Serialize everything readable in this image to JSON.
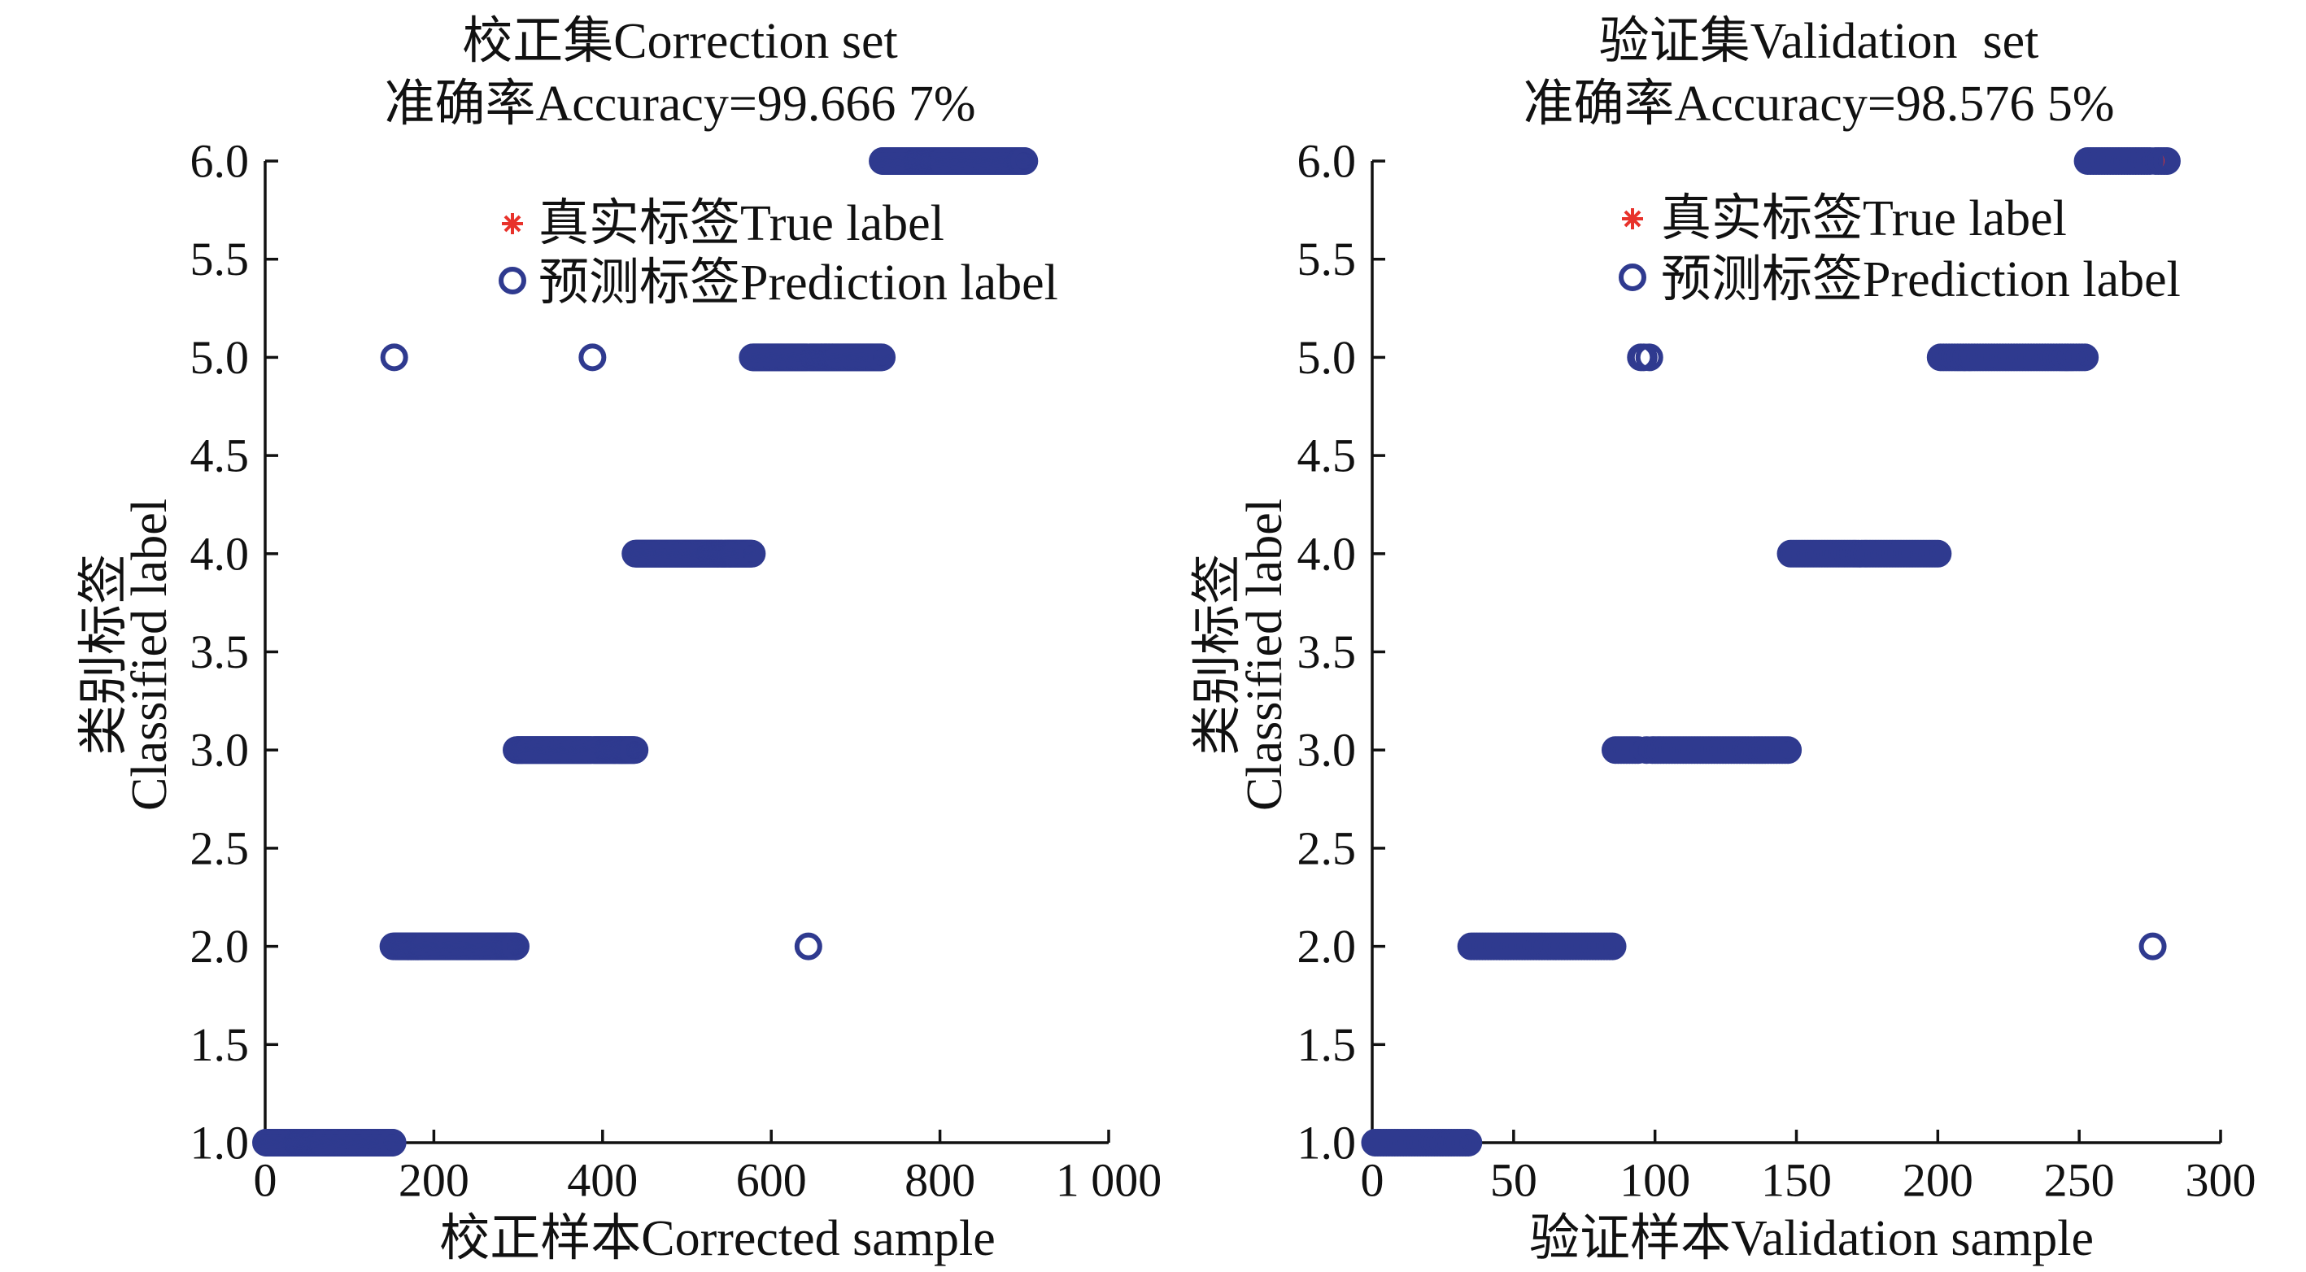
{
  "chart_data": [
    {
      "type": "scatter",
      "title": "校正集Correction set",
      "subtitle": "准确率Accuracy=99.666 7%",
      "xlabel": "校正样本Corrected sample",
      "ylabel": [
        "类别标签",
        "Classified label"
      ],
      "xlim": [
        0,
        1000
      ],
      "ylim": [
        1,
        6
      ],
      "x_ticks": [
        0,
        200,
        400,
        600,
        800,
        1000
      ],
      "x_tick_labels": [
        "0",
        "200",
        "400",
        "600",
        "800",
        "1 000"
      ],
      "y_ticks": [
        1,
        1.5,
        2,
        2.5,
        3,
        3.5,
        4,
        4.5,
        5,
        5.5,
        6
      ],
      "y_tick_labels": [
        "1.0",
        "1.5",
        "2.0",
        "2.5",
        "3.0",
        "3.5",
        "4.0",
        "4.5",
        "5.0",
        "5.5",
        "6.0"
      ],
      "grid": false,
      "legend": {
        "placement": "top"
      },
      "series": [
        {
          "name": "真实标签True label",
          "marker": "asterisk",
          "color": "#e8322b",
          "segments": [
            {
              "y": 1,
              "x_from": 1,
              "x_to": 151
            },
            {
              "y": 2,
              "x_from": 152,
              "x_to": 297
            },
            {
              "y": 3,
              "x_from": 298,
              "x_to": 438
            },
            {
              "y": 4,
              "x_from": 439,
              "x_to": 577
            },
            {
              "y": 5,
              "x_from": 578,
              "x_to": 731
            },
            {
              "y": 6,
              "x_from": 732,
              "x_to": 900
            }
          ]
        },
        {
          "name": "预测标签Prediction label",
          "marker": "circle",
          "color": "#2f3a8f",
          "segments": [
            {
              "y": 1,
              "x_from": 1,
              "x_to": 151
            },
            {
              "y": 2,
              "x_from": 152,
              "x_to": 152
            },
            {
              "y": 5,
              "x_from": 153,
              "x_to": 153
            },
            {
              "y": 2,
              "x_from": 154,
              "x_to": 297
            },
            {
              "y": 3,
              "x_from": 298,
              "x_to": 387
            },
            {
              "y": 5,
              "x_from": 388,
              "x_to": 388
            },
            {
              "y": 3,
              "x_from": 389,
              "x_to": 438
            },
            {
              "y": 4,
              "x_from": 439,
              "x_to": 577
            },
            {
              "y": 5,
              "x_from": 578,
              "x_to": 643
            },
            {
              "y": 2,
              "x_from": 644,
              "x_to": 644
            },
            {
              "y": 5,
              "x_from": 645,
              "x_to": 731
            },
            {
              "y": 6,
              "x_from": 732,
              "x_to": 900
            }
          ]
        }
      ]
    },
    {
      "type": "scatter",
      "title": "验证集Validation  set",
      "subtitle": "准确率Accuracy=98.576 5%",
      "xlabel": "验证样本Validation sample",
      "ylabel": [
        "类别标签",
        "Classified label"
      ],
      "xlim": [
        0,
        300
      ],
      "ylim": [
        1,
        6
      ],
      "x_ticks": [
        0,
        50,
        100,
        150,
        200,
        250,
        300
      ],
      "x_tick_labels": [
        "0",
        "50",
        "100",
        "150",
        "200",
        "250",
        "300"
      ],
      "y_ticks": [
        1,
        1.5,
        2,
        2.5,
        3,
        3.5,
        4,
        4.5,
        5,
        5.5,
        6
      ],
      "y_tick_labels": [
        "1.0",
        "1.5",
        "2.0",
        "2.5",
        "3.0",
        "3.5",
        "4.0",
        "4.5",
        "5.0",
        "5.5",
        "6.0"
      ],
      "grid": false,
      "legend": {
        "placement": "top"
      },
      "series": [
        {
          "name": "真实标签True label",
          "marker": "asterisk",
          "color": "#e8322b",
          "segments": [
            {
              "y": 1,
              "x_from": 1,
              "x_to": 34
            },
            {
              "y": 2,
              "x_from": 35,
              "x_to": 85
            },
            {
              "y": 3,
              "x_from": 86,
              "x_to": 147
            },
            {
              "y": 4,
              "x_from": 148,
              "x_to": 200
            },
            {
              "y": 5,
              "x_from": 201,
              "x_to": 252
            },
            {
              "y": 6,
              "x_from": 253,
              "x_to": 281
            }
          ]
        },
        {
          "name": "预测标签Prediction label",
          "marker": "circle",
          "color": "#2f3a8f",
          "segments": [
            {
              "y": 1,
              "x_from": 1,
              "x_to": 34
            },
            {
              "y": 2,
              "x_from": 35,
              "x_to": 85
            },
            {
              "y": 3,
              "x_from": 86,
              "x_to": 94
            },
            {
              "y": 5,
              "x_from": 95,
              "x_to": 96
            },
            {
              "y": 3,
              "x_from": 97,
              "x_to": 97
            },
            {
              "y": 5,
              "x_from": 98,
              "x_to": 98
            },
            {
              "y": 3,
              "x_from": 99,
              "x_to": 147
            },
            {
              "y": 4,
              "x_from": 148,
              "x_to": 200
            },
            {
              "y": 5,
              "x_from": 201,
              "x_to": 252
            },
            {
              "y": 6,
              "x_from": 253,
              "x_to": 275
            },
            {
              "y": 2,
              "x_from": 276,
              "x_to": 276
            },
            {
              "y": 6,
              "x_from": 277,
              "x_to": 281
            }
          ]
        }
      ]
    }
  ]
}
